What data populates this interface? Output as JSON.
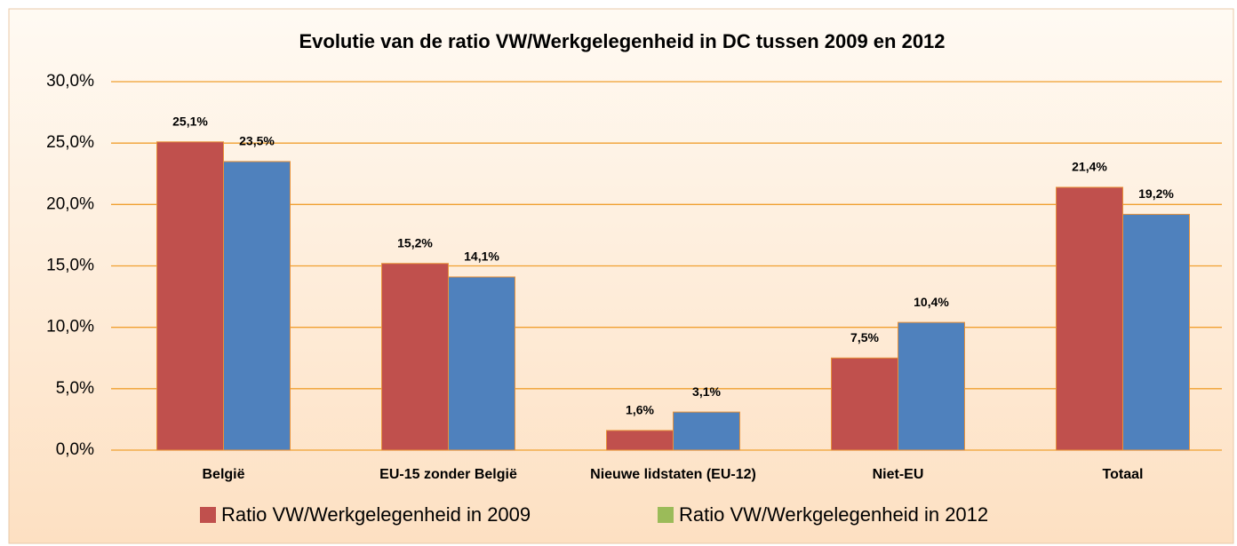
{
  "chart_data": {
    "type": "bar",
    "title": "Evolutie van de ratio VW/Werkgelegenheid in DC tussen 2009 en 2012",
    "categories": [
      "België",
      "EU-15 zonder België",
      "Nieuwe lidstaten (EU-12)",
      "Niet-EU",
      "Totaal"
    ],
    "series": [
      {
        "name": "Ratio VW/Werkgelegenheid in 2009",
        "color": "#c0504d",
        "legend_color": "#c0504d",
        "values": [
          25.1,
          15.2,
          1.6,
          7.5,
          21.4
        ],
        "value_labels": [
          "25,1%",
          "15,2%",
          "1,6%",
          "7,5%",
          "21,4%"
        ]
      },
      {
        "name": "Ratio VW/Werkgelegenheid in 2012",
        "color": "#4f81bd",
        "legend_color": "#9bbb59",
        "values": [
          23.5,
          14.1,
          3.1,
          10.4,
          19.2
        ],
        "value_labels": [
          "23,5%",
          "14,1%",
          "3,1%",
          "10,4%",
          "19,2%"
        ]
      }
    ],
    "ylim": [
      0,
      30
    ],
    "yticks": [
      {
        "value": 0,
        "label": "0,0%"
      },
      {
        "value": 5,
        "label": "5,0%"
      },
      {
        "value": 10,
        "label": "10,0%"
      },
      {
        "value": 15,
        "label": "15,0%"
      },
      {
        "value": 20,
        "label": "20,0%"
      },
      {
        "value": 25,
        "label": "25,0%"
      },
      {
        "value": 30,
        "label": "30,0%"
      }
    ],
    "grid": true,
    "legend": "bottom"
  }
}
